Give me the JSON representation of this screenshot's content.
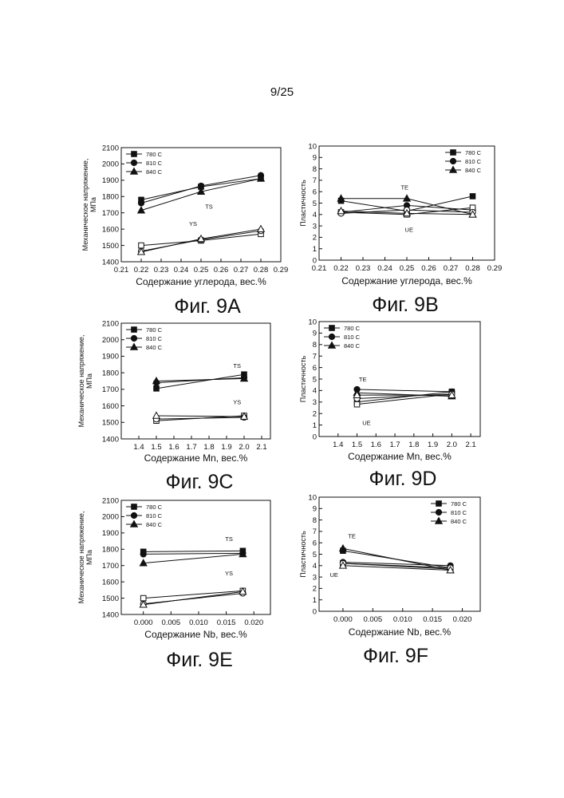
{
  "page": {
    "number": "9/25"
  },
  "colors": {
    "ink": "#111111",
    "paper": "#ffffff"
  },
  "chart_data": [
    {
      "id": "9A",
      "type": "line",
      "caption": "Фиг. 9А",
      "xlabel": "Содержание углерода, вес.%",
      "ylabel": "Механическое напряжение, МПа",
      "xlim": [
        0.21,
        0.29
      ],
      "ylim": [
        1400,
        2100
      ],
      "xticks": [
        "0.21",
        "0.22",
        "0.23",
        "0.24",
        "0.25",
        "0.26",
        "0.27",
        "0.28",
        "0.29"
      ],
      "yticks": [
        "1400",
        "1500",
        "1600",
        "1700",
        "1800",
        "1900",
        "2000",
        "2100"
      ],
      "x": [
        0.22,
        0.25,
        0.28
      ],
      "legend_position": "top-left",
      "legend": [
        "780 C",
        "810 C",
        "840 C"
      ],
      "annotations": [
        {
          "text": "TS",
          "x": 0.254,
          "y": 1725
        },
        {
          "text": "YS",
          "x": 0.246,
          "y": 1620
        }
      ],
      "series": [
        {
          "name": "780 C",
          "marker": "square",
          "group": "TS",
          "values": [
            1780,
            1860,
            1910
          ]
        },
        {
          "name": "810 C",
          "marker": "circle",
          "group": "TS",
          "values": [
            1760,
            1865,
            1930
          ]
        },
        {
          "name": "840 C",
          "marker": "triangle",
          "group": "TS",
          "values": [
            1715,
            1830,
            1910
          ]
        },
        {
          "name": "780 C",
          "marker": "square",
          "group": "YS",
          "hollow": true,
          "values": [
            1500,
            1530,
            1570
          ]
        },
        {
          "name": "810 C",
          "marker": "circle",
          "group": "YS",
          "hollow": true,
          "values": [
            1465,
            1535,
            1590
          ]
        },
        {
          "name": "840 C",
          "marker": "triangle",
          "group": "YS",
          "hollow": true,
          "values": [
            1460,
            1540,
            1600
          ]
        }
      ]
    },
    {
      "id": "9B",
      "type": "line",
      "caption": "Фиг. 9В",
      "xlabel": "Содержание углерода, вес.%",
      "ylabel": "Пластичность",
      "xlim": [
        0.21,
        0.29
      ],
      "ylim": [
        0,
        10
      ],
      "xticks": [
        "0.21",
        "0.22",
        "0.23",
        "0.24",
        "0.25",
        "0.26",
        "0.27",
        "0.28",
        "0.29"
      ],
      "yticks": [
        "0",
        "1",
        "2",
        "3",
        "4",
        "5",
        "6",
        "7",
        "8",
        "9",
        "10"
      ],
      "x": [
        0.22,
        0.25,
        0.28
      ],
      "legend_position": "top-right",
      "legend": [
        "780 C",
        "810 C",
        "840 C"
      ],
      "annotations": [
        {
          "text": "TE",
          "x": 0.249,
          "y": 6.2
        },
        {
          "text": "UE",
          "x": 0.251,
          "y": 2.5
        }
      ],
      "series": [
        {
          "name": "780 C",
          "marker": "square",
          "group": "TE",
          "values": [
            5.2,
            4.3,
            5.6
          ]
        },
        {
          "name": "810 C",
          "marker": "circle",
          "group": "TE",
          "values": [
            4.2,
            4.8,
            4.4
          ]
        },
        {
          "name": "840 C",
          "marker": "triangle",
          "group": "TE",
          "values": [
            5.4,
            5.4,
            4.0
          ]
        },
        {
          "name": "780 C",
          "marker": "square",
          "group": "UE",
          "hollow": true,
          "values": [
            4.2,
            4.0,
            4.6
          ]
        },
        {
          "name": "810 C",
          "marker": "circle",
          "group": "UE",
          "hollow": true,
          "values": [
            4.1,
            4.4,
            4.2
          ]
        },
        {
          "name": "840 C",
          "marker": "triangle",
          "group": "UE",
          "hollow": true,
          "values": [
            4.3,
            4.1,
            4.0
          ]
        }
      ]
    },
    {
      "id": "9C",
      "type": "line",
      "caption": "Фиг. 9С",
      "xlabel": "Содержание Mn, вес.%",
      "ylabel": "Механическое напряжение, МПа",
      "xlim": [
        1.3,
        2.15
      ],
      "ylim": [
        1400,
        2100
      ],
      "xticks": [
        "1.4",
        "1.5",
        "1.6",
        "1.7",
        "1.8",
        "1.9",
        "2.0",
        "2.1"
      ],
      "yticks": [
        "1400",
        "1500",
        "1600",
        "1700",
        "1800",
        "1900",
        "2000",
        "2100"
      ],
      "x": [
        1.5,
        2.0
      ],
      "legend_position": "top-left",
      "legend": [
        "780 C",
        "810 C",
        "840 C"
      ],
      "annotations": [
        {
          "text": "TS",
          "x": 1.96,
          "y": 1830
        },
        {
          "text": "YS",
          "x": 1.96,
          "y": 1610
        }
      ],
      "series": [
        {
          "name": "780 C",
          "marker": "square",
          "group": "TS",
          "values": [
            1705,
            1790
          ]
        },
        {
          "name": "810 C",
          "marker": "circle",
          "group": "TS",
          "values": [
            1740,
            1770
          ]
        },
        {
          "name": "840 C",
          "marker": "triangle",
          "group": "TS",
          "values": [
            1750,
            1765
          ]
        },
        {
          "name": "780 C",
          "marker": "square",
          "group": "YS",
          "hollow": true,
          "values": [
            1510,
            1540
          ]
        },
        {
          "name": "810 C",
          "marker": "circle",
          "group": "YS",
          "hollow": true,
          "values": [
            1520,
            1530
          ]
        },
        {
          "name": "840 C",
          "marker": "triangle",
          "group": "YS",
          "hollow": true,
          "values": [
            1540,
            1535
          ]
        }
      ]
    },
    {
      "id": "9D",
      "type": "line",
      "caption": "Фиг. 9D",
      "xlabel": "Содержание Mn, вес.%",
      "ylabel": "Пластичность",
      "xlim": [
        1.3,
        2.15
      ],
      "ylim": [
        0,
        10
      ],
      "xticks": [
        "1.4",
        "1.5",
        "1.6",
        "1.7",
        "1.8",
        "1.9",
        "2.0",
        "2.1"
      ],
      "yticks": [
        "0",
        "1",
        "2",
        "3",
        "4",
        "5",
        "6",
        "7",
        "8",
        "9",
        "10"
      ],
      "x": [
        1.5,
        2.0
      ],
      "legend_position": "top-left",
      "legend": [
        "780 C",
        "810 C",
        "840 C"
      ],
      "annotations": [
        {
          "text": "TE",
          "x": 1.53,
          "y": 4.8
        },
        {
          "text": "UE",
          "x": 1.55,
          "y": 1.0
        }
      ],
      "series": [
        {
          "name": "780 C",
          "marker": "square",
          "group": "TE",
          "values": [
            3.0,
            3.9
          ]
        },
        {
          "name": "810 C",
          "marker": "circle",
          "group": "TE",
          "values": [
            4.1,
            3.9
          ]
        },
        {
          "name": "840 C",
          "marker": "triangle",
          "group": "TE",
          "values": [
            3.8,
            3.5
          ]
        },
        {
          "name": "780 C",
          "marker": "square",
          "group": "UE",
          "hollow": true,
          "values": [
            2.8,
            3.7
          ]
        },
        {
          "name": "810 C",
          "marker": "circle",
          "group": "UE",
          "hollow": true,
          "values": [
            3.3,
            3.7
          ]
        },
        {
          "name": "840 C",
          "marker": "triangle",
          "group": "UE",
          "hollow": true,
          "values": [
            3.6,
            3.6
          ]
        }
      ]
    },
    {
      "id": "9E",
      "type": "line",
      "caption": "Фиг. 9Е",
      "xlabel": "Содержание Nb, вес.%",
      "ylabel": "Механическое напряжение, МПа",
      "xlim": [
        -0.004,
        0.023
      ],
      "ylim": [
        1400,
        2100
      ],
      "xticks": [
        "0.000",
        "0.005",
        "0.010",
        "0.015",
        "0.020"
      ],
      "yticks": [
        "1400",
        "1500",
        "1600",
        "1700",
        "1800",
        "1900",
        "2000",
        "2100"
      ],
      "x": [
        0.0,
        0.018
      ],
      "legend_position": "top-left",
      "legend": [
        "780 C",
        "810 C",
        "840 C"
      ],
      "annotations": [
        {
          "text": "TS",
          "x": 0.0155,
          "y": 1850
        },
        {
          "text": "YS",
          "x": 0.0155,
          "y": 1640
        }
      ],
      "series": [
        {
          "name": "780 C",
          "marker": "square",
          "group": "TS",
          "values": [
            1785,
            1790
          ]
        },
        {
          "name": "810 C",
          "marker": "circle",
          "group": "TS",
          "values": [
            1770,
            1775
          ]
        },
        {
          "name": "840 C",
          "marker": "triangle",
          "group": "TS",
          "values": [
            1715,
            1770
          ]
        },
        {
          "name": "780 C",
          "marker": "square",
          "group": "YS",
          "hollow": true,
          "values": [
            1500,
            1545
          ]
        },
        {
          "name": "810 C",
          "marker": "circle",
          "group": "YS",
          "hollow": true,
          "values": [
            1465,
            1530
          ]
        },
        {
          "name": "840 C",
          "marker": "triangle",
          "group": "YS",
          "hollow": true,
          "values": [
            1460,
            1540
          ]
        }
      ]
    },
    {
      "id": "9F",
      "type": "line",
      "caption": "Фиг. 9F",
      "xlabel": "Содержание Nb, вес.%",
      "ylabel": "Пластичность",
      "xlim": [
        -0.004,
        0.023
      ],
      "ylim": [
        0,
        10
      ],
      "xticks": [
        "0.000",
        "0.005",
        "0.010",
        "0.015",
        "0.020"
      ],
      "yticks": [
        "0",
        "1",
        "2",
        "3",
        "4",
        "5",
        "6",
        "7",
        "8",
        "9",
        "10"
      ],
      "x": [
        0.0,
        0.018
      ],
      "legend_position": "top-right",
      "legend": [
        "780 C",
        "810 C",
        "840 C"
      ],
      "annotations": [
        {
          "text": "TE",
          "x": 0.0015,
          "y": 6.4
        },
        {
          "text": "UE",
          "x": -0.0015,
          "y": 3.0
        }
      ],
      "series": [
        {
          "name": "780 C",
          "marker": "square",
          "group": "TE",
          "values": [
            5.3,
            3.8
          ]
        },
        {
          "name": "810 C",
          "marker": "circle",
          "group": "TE",
          "values": [
            4.3,
            4.0
          ]
        },
        {
          "name": "840 C",
          "marker": "triangle",
          "group": "TE",
          "values": [
            5.5,
            3.6
          ]
        },
        {
          "name": "780 C",
          "marker": "square",
          "group": "UE",
          "hollow": true,
          "values": [
            4.2,
            3.7
          ]
        },
        {
          "name": "810 C",
          "marker": "circle",
          "group": "UE",
          "hollow": true,
          "values": [
            4.2,
            3.8
          ]
        },
        {
          "name": "840 C",
          "marker": "triangle",
          "group": "UE",
          "hollow": true,
          "values": [
            4.0,
            3.6
          ]
        }
      ]
    }
  ]
}
